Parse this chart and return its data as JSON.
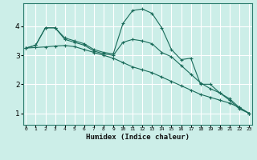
{
  "title": "",
  "xlabel": "Humidex (Indice chaleur)",
  "ylabel": "",
  "background_color": "#cceee8",
  "grid_color": "#ffffff",
  "line_color": "#1a6b5a",
  "x_ticks": [
    0,
    1,
    2,
    3,
    4,
    5,
    6,
    7,
    8,
    9,
    10,
    11,
    12,
    13,
    14,
    15,
    16,
    17,
    18,
    19,
    20,
    21,
    22,
    23
  ],
  "y_ticks": [
    1,
    2,
    3,
    4
  ],
  "ylim": [
    0.6,
    4.8
  ],
  "xlim": [
    -0.3,
    23.3
  ],
  "series": [
    {
      "x": [
        0,
        1,
        2,
        3,
        4,
        5,
        6,
        7,
        8,
        9,
        10,
        11,
        12,
        13,
        14,
        15,
        16,
        17,
        18,
        19,
        20,
        21,
        22,
        23
      ],
      "y": [
        3.25,
        3.35,
        3.95,
        3.95,
        3.6,
        3.5,
        3.4,
        3.2,
        3.1,
        3.05,
        4.1,
        4.55,
        4.6,
        4.45,
        3.95,
        3.2,
        2.85,
        2.9,
        2.0,
        2.0,
        1.7,
        1.45,
        1.15,
        1.0
      ]
    },
    {
      "x": [
        0,
        1,
        2,
        3,
        4,
        5,
        6,
        7,
        8,
        9,
        10,
        11,
        12,
        13,
        14,
        15,
        16,
        17,
        18,
        19,
        20,
        21,
        22,
        23
      ],
      "y": [
        3.25,
        3.27,
        3.29,
        3.32,
        3.34,
        3.3,
        3.2,
        3.1,
        3.0,
        2.9,
        2.75,
        2.6,
        2.5,
        2.4,
        2.25,
        2.1,
        1.95,
        1.8,
        1.65,
        1.55,
        1.45,
        1.35,
        1.2,
        1.0
      ]
    },
    {
      "x": [
        0,
        1,
        2,
        3,
        4,
        5,
        6,
        7,
        8,
        9,
        10,
        11,
        12,
        13,
        14,
        15,
        16,
        17,
        18,
        19,
        20,
        21,
        22,
        23
      ],
      "y": [
        3.25,
        3.35,
        3.95,
        3.95,
        3.55,
        3.45,
        3.35,
        3.15,
        3.05,
        3.0,
        3.45,
        3.55,
        3.5,
        3.4,
        3.1,
        2.95,
        2.65,
        2.35,
        2.05,
        1.85,
        1.7,
        1.5,
        1.2,
        1.0
      ]
    }
  ]
}
